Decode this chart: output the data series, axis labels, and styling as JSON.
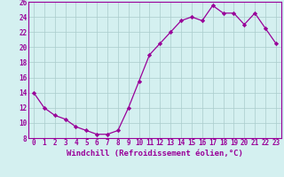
{
  "x": [
    0,
    1,
    2,
    3,
    4,
    5,
    6,
    7,
    8,
    9,
    10,
    11,
    12,
    13,
    14,
    15,
    16,
    17,
    18,
    19,
    20,
    21,
    22,
    23
  ],
  "y": [
    14,
    12,
    11,
    10.5,
    9.5,
    9,
    8.5,
    8.5,
    9,
    12,
    15.5,
    19,
    20.5,
    22,
    23.5,
    24,
    23.5,
    25.5,
    24.5,
    24.5,
    23,
    24.5,
    22.5,
    20.5
  ],
  "line_color": "#990099",
  "marker": "D",
  "marker_size": 2.2,
  "bg_color": "#d4f0f0",
  "grid_color": "#aacccc",
  "xlabel": "Windchill (Refroidissement éolien,°C)",
  "xlim": [
    -0.5,
    23.5
  ],
  "ylim": [
    8,
    26
  ],
  "yticks": [
    8,
    10,
    12,
    14,
    16,
    18,
    20,
    22,
    24,
    26
  ],
  "xticks": [
    0,
    1,
    2,
    3,
    4,
    5,
    6,
    7,
    8,
    9,
    10,
    11,
    12,
    13,
    14,
    15,
    16,
    17,
    18,
    19,
    20,
    21,
    22,
    23
  ],
  "tick_fontsize": 5.5,
  "xlabel_fontsize": 6.5
}
